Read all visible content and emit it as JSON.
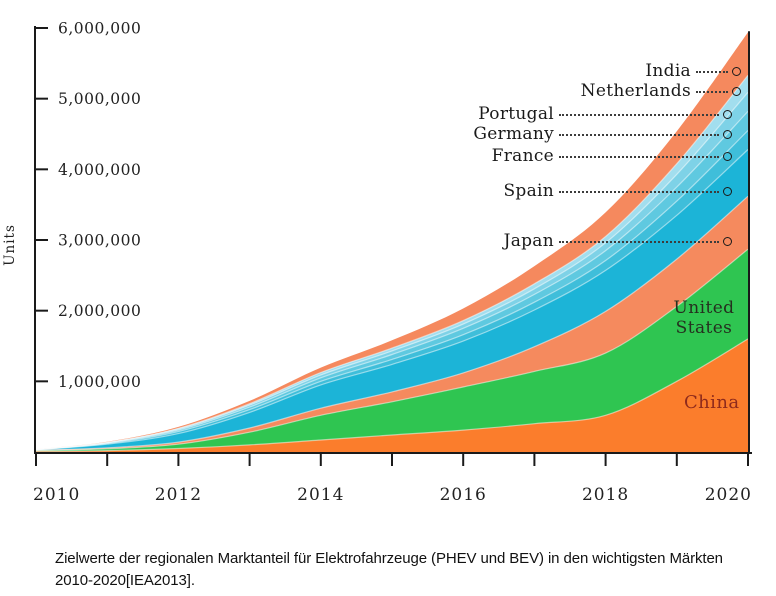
{
  "caption": "Zielwerte der regionalen Marktanteil für Elektrofahrzeuge (PHEV und BEV) in den wichtigsten Märkten 2010-2020[IEA2013].",
  "axes": {
    "y_title": "Units",
    "y_tick_labels": [
      "1,000,000",
      "2,000,000",
      "3,000,000",
      "4,000,000",
      "5,000,000",
      "6,000,000"
    ],
    "x_tick_labels": [
      "2010",
      "2012",
      "2014",
      "2016",
      "2018",
      "2020"
    ]
  },
  "region_labels": {
    "united_states": "United States",
    "china": "China"
  },
  "callouts": [
    {
      "country": "India"
    },
    {
      "country": "Netherlands"
    },
    {
      "country": "Portugal"
    },
    {
      "country": "Germany"
    },
    {
      "country": "France"
    },
    {
      "country": "Spain"
    },
    {
      "country": "Japan"
    }
  ],
  "chart_data": {
    "type": "area",
    "stacked": true,
    "ylabel": "Units",
    "ylim": [
      0,
      6000000
    ],
    "grid": false,
    "x": [
      2010,
      2011,
      2012,
      2013,
      2014,
      2015,
      2016,
      2017,
      2018,
      2019,
      2020
    ],
    "x_labeled_years": [
      2010,
      2012,
      2014,
      2016,
      2018,
      2020
    ],
    "series": [
      {
        "name": "China",
        "id": "china",
        "color": "#fb7d2c",
        "values": [
          10000,
          20000,
          50000,
          100000,
          170000,
          240000,
          310000,
          400000,
          520000,
          1000000,
          1600000
        ]
      },
      {
        "name": "United States",
        "id": "united-states",
        "color": "#2fc551",
        "values": [
          10000,
          25000,
          60000,
          180000,
          350000,
          470000,
          610000,
          740000,
          880000,
          1060000,
          1270000
        ]
      },
      {
        "name": "Japan",
        "id": "japan",
        "color": "#f58a5e",
        "values": [
          5000,
          15000,
          30000,
          60000,
          100000,
          140000,
          200000,
          350000,
          590000,
          670000,
          750000
        ]
      },
      {
        "name": "Spain",
        "id": "spain",
        "color": "#1cb4d7",
        "values": [
          5000,
          50000,
          120000,
          220000,
          330000,
          390000,
          450000,
          520000,
          580000,
          620000,
          660000
        ]
      },
      {
        "name": "France",
        "id": "france",
        "color": "#3fbeda",
        "values": [
          2000,
          10000,
          30000,
          40000,
          50000,
          70000,
          90000,
          110000,
          140000,
          200000,
          270000
        ]
      },
      {
        "name": "Germany",
        "id": "germany",
        "color": "#5fc9e0",
        "values": [
          2000,
          8000,
          20000,
          35000,
          50000,
          70000,
          90000,
          110000,
          140000,
          200000,
          270000
        ]
      },
      {
        "name": "Portugal",
        "id": "portugal",
        "color": "#7ed2e7",
        "values": [
          1000,
          5000,
          15000,
          28000,
          40000,
          50000,
          60000,
          80000,
          110000,
          180000,
          270000
        ]
      },
      {
        "name": "Netherlands",
        "id": "netherlands",
        "color": "#a2deee",
        "values": [
          1000,
          4000,
          10000,
          20000,
          35000,
          40000,
          50000,
          70000,
          90000,
          150000,
          240000
        ]
      },
      {
        "name": "India",
        "id": "india",
        "color": "#f5895e",
        "values": [
          2000,
          8000,
          20000,
          40000,
          70000,
          110000,
          170000,
          250000,
          340000,
          460000,
          610000
        ]
      }
    ],
    "annotations": [
      "India",
      "Netherlands",
      "Portugal",
      "Germany",
      "France",
      "Spain",
      "Japan",
      "United States",
      "China"
    ]
  }
}
